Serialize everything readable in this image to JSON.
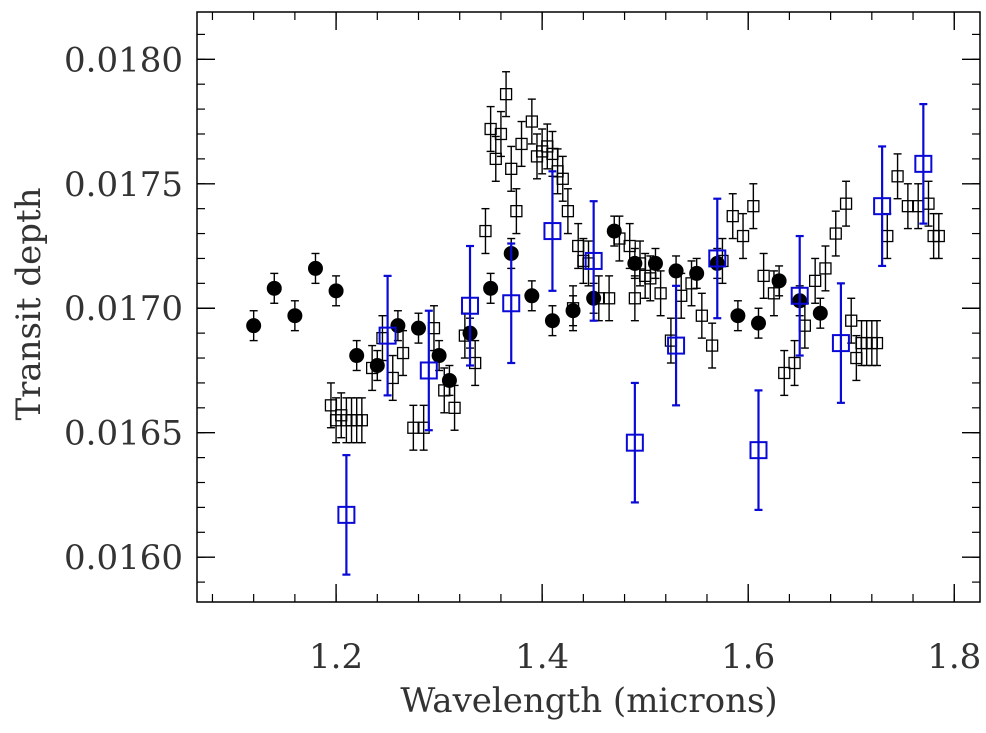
{
  "chart_data": {
    "type": "scatter",
    "title": "",
    "xlabel": "Wavelength (microns)",
    "ylabel": "Transit depth",
    "xlim": [
      1.065,
      1.825
    ],
    "ylim": [
      0.01582,
      0.01819
    ],
    "x_ticks": [
      1.2,
      1.4,
      1.6,
      1.8
    ],
    "x_tick_labels": [
      "1.2",
      "1.4",
      "1.6",
      "1.8"
    ],
    "y_ticks": [
      0.016,
      0.0165,
      0.017,
      0.0175,
      0.018
    ],
    "y_tick_labels": [
      "0.0160",
      "0.0165",
      "0.0170",
      "0.0175",
      "0.0180"
    ],
    "x_minor_step": 0.04,
    "y_minor_step": 0.0001,
    "grid": false,
    "legend": "none",
    "series": [
      {
        "marker": "filled-circle",
        "color": "#000000",
        "error": 6e-05,
        "x": [
          1.12,
          1.14,
          1.16,
          1.18,
          1.2,
          1.22,
          1.24,
          1.26,
          1.28,
          1.3,
          1.31,
          1.33,
          1.35,
          1.37,
          1.39,
          1.41,
          1.43,
          1.45,
          1.47,
          1.49,
          1.51,
          1.53,
          1.55,
          1.57,
          1.59,
          1.61,
          1.63,
          1.65,
          1.67
        ],
        "y": [
          0.01693,
          0.01708,
          0.01697,
          0.01716,
          0.01707,
          0.01681,
          0.01677,
          0.01693,
          0.01692,
          0.01681,
          0.01671,
          0.0169,
          0.01708,
          0.01722,
          0.01705,
          0.01695,
          0.01699,
          0.01704,
          0.01731,
          0.01718,
          0.01718,
          0.01715,
          0.01714,
          0.01718,
          0.01697,
          0.01694,
          0.01711,
          0.01703,
          0.01698
        ]
      },
      {
        "marker": "open-square-small",
        "color": "#000000",
        "error": 9e-05,
        "x": [
          1.195,
          1.2,
          1.205,
          1.21,
          1.215,
          1.22,
          1.225,
          1.235,
          1.245,
          1.255,
          1.265,
          1.275,
          1.285,
          1.295,
          1.305,
          1.315,
          1.325,
          1.335,
          1.345,
          1.35,
          1.355,
          1.36,
          1.365,
          1.37,
          1.375,
          1.38,
          1.39,
          1.395,
          1.4,
          1.405,
          1.41,
          1.415,
          1.42,
          1.425,
          1.43,
          1.435,
          1.44,
          1.445,
          1.455,
          1.465,
          1.475,
          1.485,
          1.49,
          1.495,
          1.5,
          1.505,
          1.515,
          1.525,
          1.535,
          1.545,
          1.555,
          1.565,
          1.575,
          1.585,
          1.595,
          1.605,
          1.615,
          1.625,
          1.635,
          1.645,
          1.655,
          1.665,
          1.675,
          1.685,
          1.695,
          1.7,
          1.705,
          1.71,
          1.715,
          1.72,
          1.725,
          1.735,
          1.745,
          1.755,
          1.765,
          1.775,
          1.78,
          1.785
        ],
        "y": [
          0.01661,
          0.01655,
          0.01657,
          0.01655,
          0.01655,
          0.01655,
          0.01655,
          0.01676,
          0.01688,
          0.01672,
          0.01682,
          0.01652,
          0.01652,
          0.01692,
          0.01667,
          0.0166,
          0.01689,
          0.01678,
          0.01731,
          0.01772,
          0.0176,
          0.0177,
          0.01786,
          0.01756,
          0.01739,
          0.01766,
          0.01775,
          0.01761,
          0.01763,
          0.01765,
          0.01762,
          0.01755,
          0.01752,
          0.01739,
          0.017,
          0.01725,
          0.01719,
          0.01718,
          0.01704,
          0.01704,
          0.01728,
          0.01725,
          0.01704,
          0.01718,
          0.01713,
          0.01712,
          0.01706,
          0.01687,
          0.01705,
          0.0171,
          0.01697,
          0.01685,
          0.01719,
          0.01737,
          0.01729,
          0.01741,
          0.01713,
          0.01706,
          0.01674,
          0.01678,
          0.01693,
          0.01711,
          0.01716,
          0.0173,
          0.01742,
          0.01695,
          0.0168,
          0.01686,
          0.01686,
          0.01686,
          0.01686,
          0.01729,
          0.01753,
          0.01741,
          0.01741,
          0.01742,
          0.01729,
          0.01729
        ]
      },
      {
        "marker": "open-square-large",
        "color": "#0a0ad6",
        "error": 0.00024,
        "x": [
          1.21,
          1.25,
          1.29,
          1.33,
          1.37,
          1.41,
          1.45,
          1.49,
          1.53,
          1.57,
          1.61,
          1.65,
          1.69,
          1.73,
          1.77
        ],
        "y": [
          0.01617,
          0.01689,
          0.01675,
          0.01701,
          0.01702,
          0.01731,
          0.01719,
          0.01646,
          0.01685,
          0.0172,
          0.01643,
          0.01705,
          0.01686,
          0.01741,
          0.01758
        ]
      }
    ]
  }
}
